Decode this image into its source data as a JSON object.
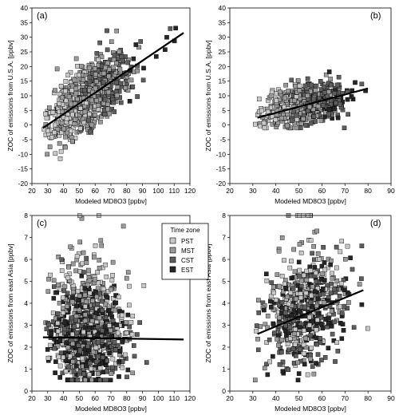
{
  "chart_data": [
    {
      "type": "scatter",
      "panel_label": "(a)",
      "xlabel": "Modeled MD8O3 [ppbv]",
      "ylabel": "ZOC of emissions from U.S.A. [ppbv]",
      "xlim": [
        20,
        120
      ],
      "ylim": [
        -20,
        40
      ],
      "xticks": [
        20,
        30,
        40,
        50,
        60,
        70,
        80,
        90,
        100,
        110,
        120
      ],
      "yticks": [
        -20,
        -15,
        -10,
        -5,
        0,
        5,
        10,
        15,
        20,
        25,
        30,
        35,
        40
      ],
      "cloud": {
        "x_range": [
          27,
          116
        ],
        "x_center": 55,
        "x_sd": 12,
        "y_intercept": -9.5,
        "y_slope": 0.35,
        "y_spread": 5.5,
        "y_min": -17,
        "y_max": 40,
        "count": 950
      },
      "fit_line": {
        "x": [
          27,
          116
        ],
        "y": [
          -1,
          31.5
        ]
      }
    },
    {
      "type": "scatter",
      "panel_label": "(b)",
      "xlabel": "Modeled MD8O3 [ppbv]",
      "ylabel": "ZOC of emissions from U.S.A. [ppbv]",
      "xlim": [
        20,
        90
      ],
      "ylim": [
        -20,
        40
      ],
      "xticks": [
        20,
        30,
        40,
        50,
        60,
        70,
        80,
        90
      ],
      "yticks": [
        -20,
        -15,
        -10,
        -5,
        0,
        5,
        10,
        15,
        20,
        25,
        30,
        35,
        40
      ],
      "cloud": {
        "x_range": [
          31,
          80
        ],
        "x_center": 52,
        "x_sd": 9,
        "y_intercept": -2,
        "y_slope": 0.17,
        "y_spread": 3.5,
        "y_min": -1,
        "y_max": 22,
        "count": 600
      },
      "fit_line": {
        "x": [
          32,
          80
        ],
        "y": [
          2.5,
          12.5
        ]
      }
    },
    {
      "type": "scatter",
      "panel_label": "(c)",
      "xlabel": "Modeled MD8O3 [ppbv]",
      "ylabel": "ZOC of emissions from east Asia [ppbv]",
      "xlim": [
        20,
        120
      ],
      "ylim": [
        0,
        8
      ],
      "xticks": [
        20,
        30,
        40,
        50,
        60,
        70,
        80,
        90,
        100,
        110,
        120
      ],
      "yticks": [
        0,
        1,
        2,
        3,
        4,
        5,
        6,
        7,
        8
      ],
      "cloud": {
        "x_range": [
          27,
          116
        ],
        "x_center": 55,
        "x_sd": 12,
        "y_intercept": 2.5,
        "y_slope": 0,
        "y_spread": 1.1,
        "y_min": 0.5,
        "y_max": 8,
        "count": 950
      },
      "fit_line": {
        "x": [
          27,
          116
        ],
        "y": [
          2.45,
          2.35
        ]
      }
    },
    {
      "type": "scatter",
      "panel_label": "(d)",
      "xlabel": "Modeled MD8O3 [ppbv]",
      "ylabel": "ZOC of emissions from east Asia [ppbv]",
      "xlim": [
        20,
        90
      ],
      "ylim": [
        0,
        8
      ],
      "xticks": [
        20,
        30,
        40,
        50,
        60,
        70,
        80,
        90
      ],
      "yticks": [
        0,
        1,
        2,
        3,
        4,
        5,
        6,
        7,
        8
      ],
      "cloud": {
        "x_range": [
          31,
          80
        ],
        "x_center": 52,
        "x_sd": 9,
        "y_intercept": 1.3,
        "y_slope": 0.04,
        "y_spread": 1.1,
        "y_min": 0.5,
        "y_max": 8,
        "count": 600
      },
      "fit_line": {
        "x": [
          32,
          78
        ],
        "y": [
          2.6,
          4.6
        ]
      }
    }
  ],
  "legend": {
    "title": "Time zone",
    "entries": [
      {
        "name": "PST",
        "color": "#c8c8c8"
      },
      {
        "name": "MST",
        "color": "#9a9a9a"
      },
      {
        "name": "CST",
        "color": "#5e5e5e"
      },
      {
        "name": "EST",
        "color": "#262626"
      }
    ]
  }
}
